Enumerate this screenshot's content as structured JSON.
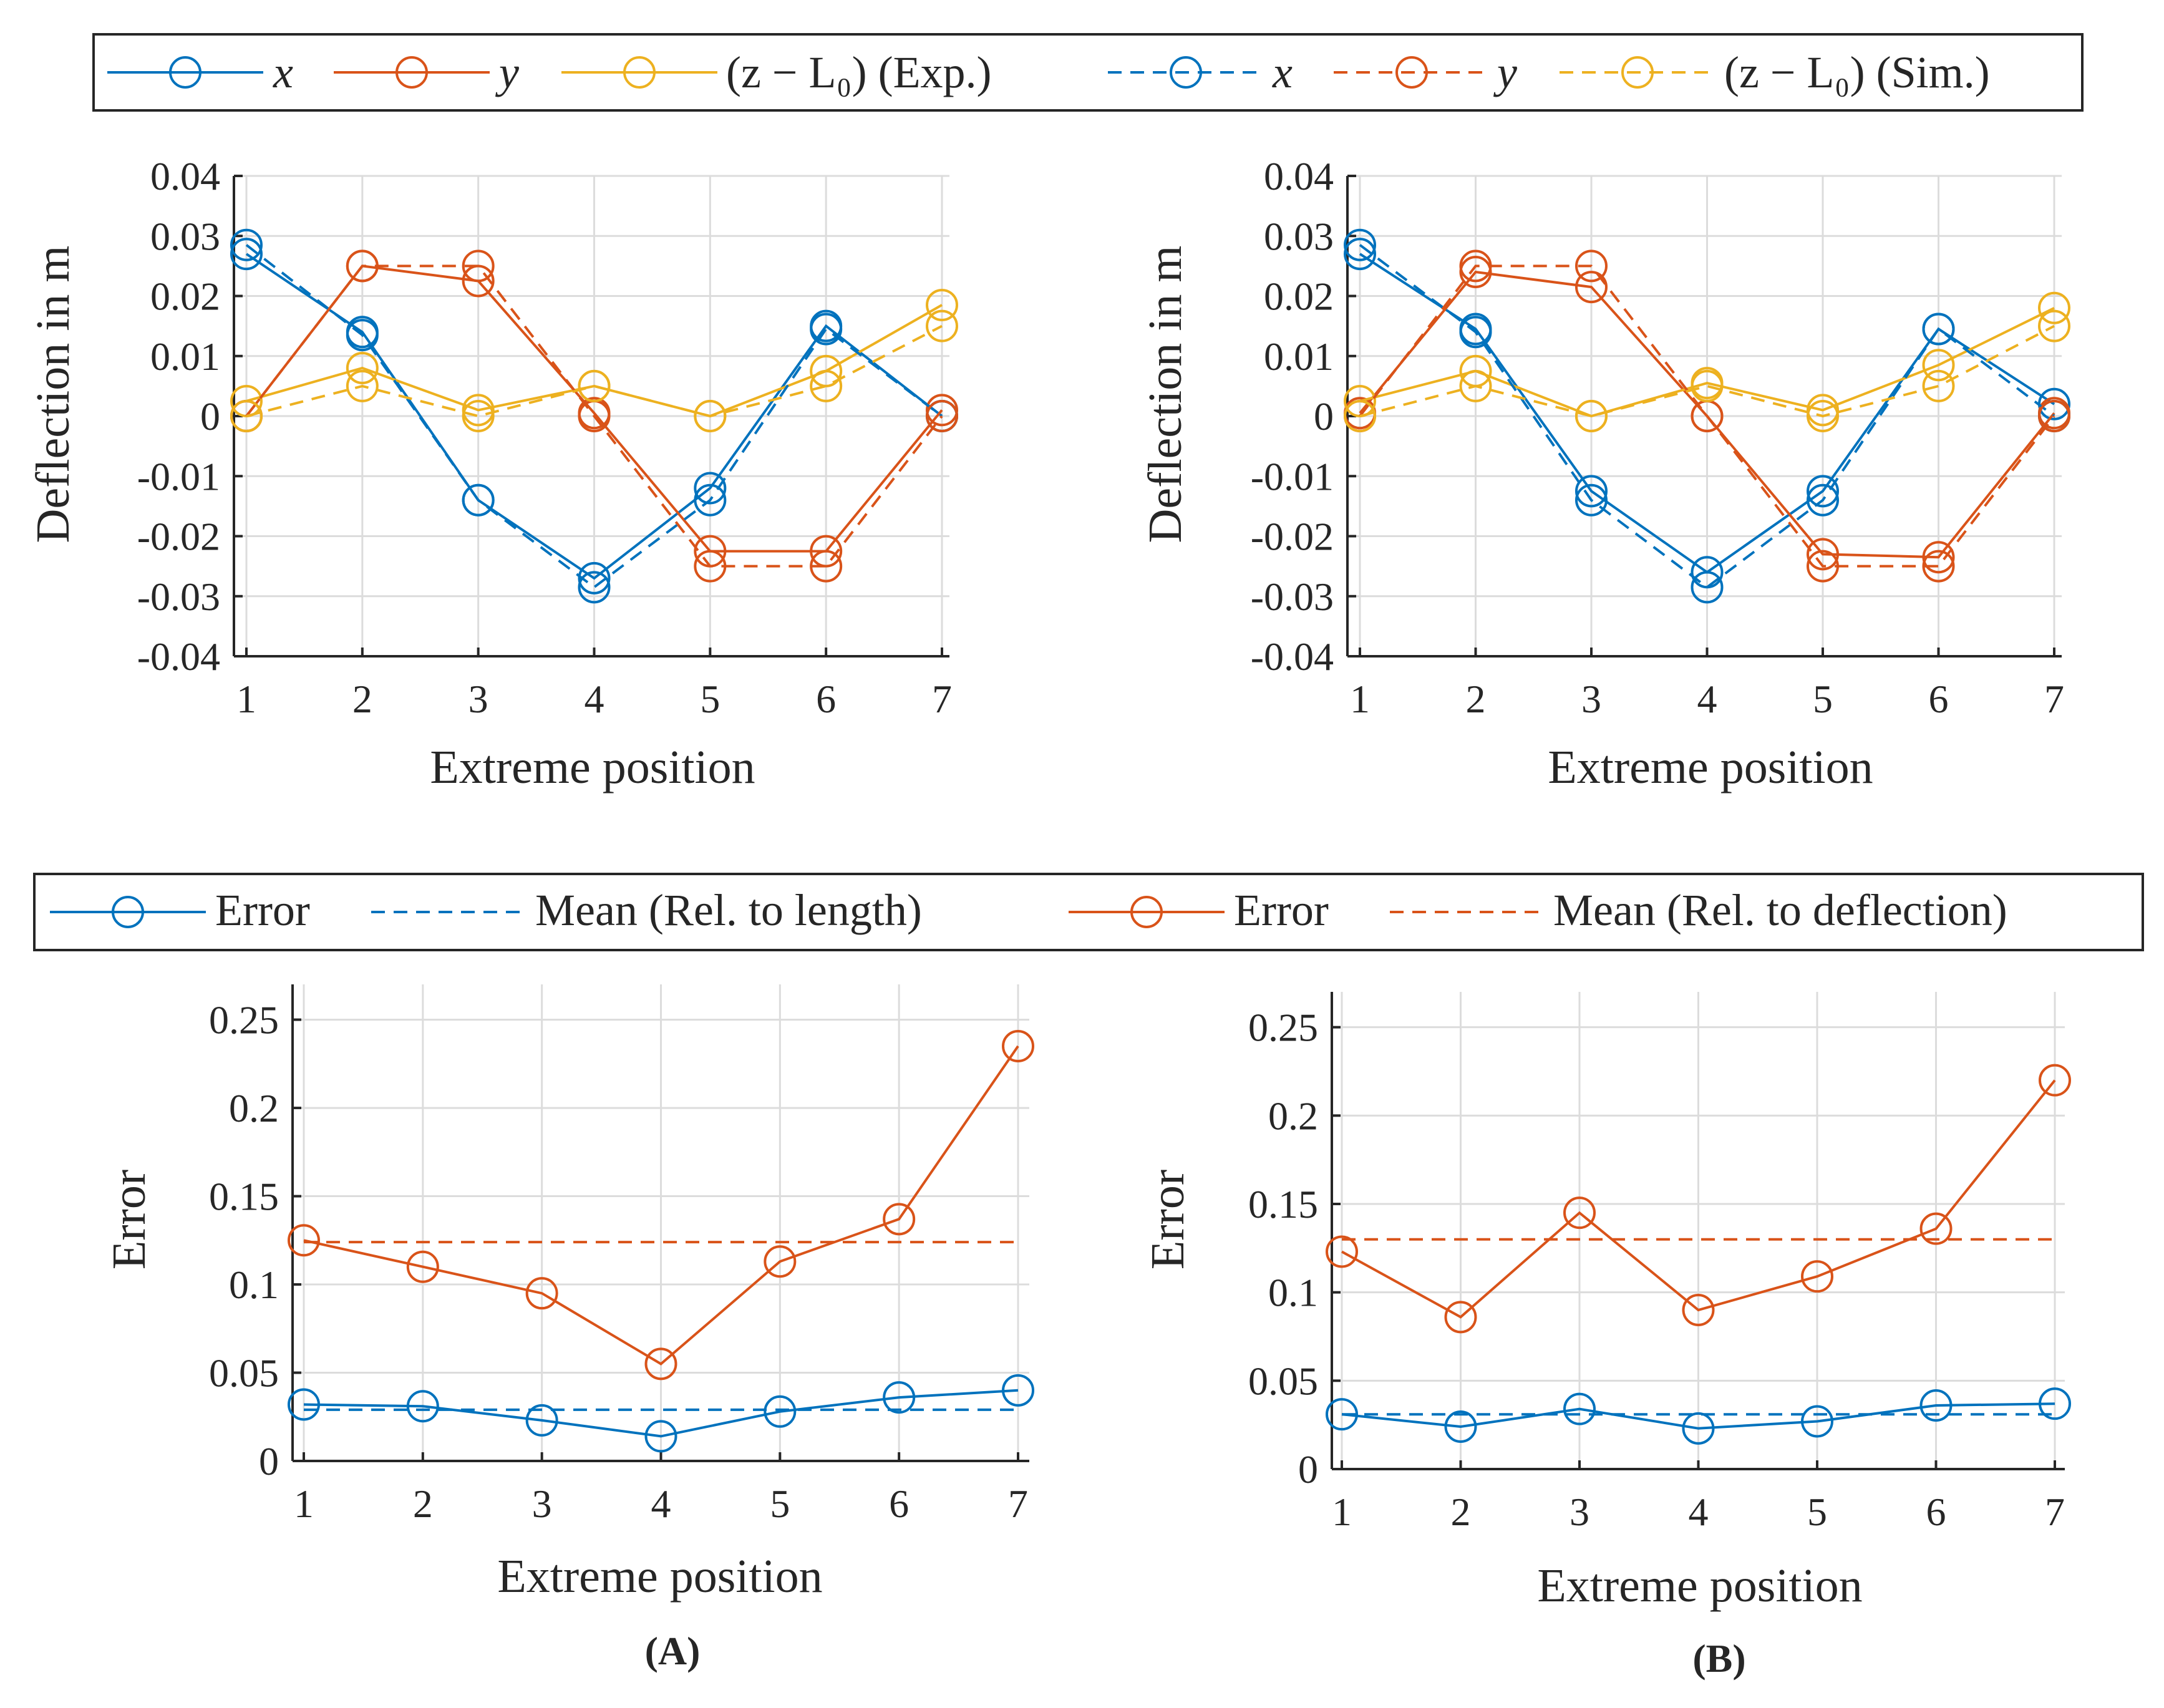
{
  "colors": {
    "blue": "#0072BD",
    "red": "#D95319",
    "yellow": "#EDB120",
    "grid": "#DCDCDC",
    "axis": "#262626"
  },
  "legend_top": {
    "entries": [
      {
        "label": "x",
        "series": "x_exp"
      },
      {
        "label": "y",
        "series": "y_exp"
      },
      {
        "label": "(z − L₀) (Exp.)",
        "series": "z_exp"
      },
      {
        "label": "x",
        "series": "x_sim"
      },
      {
        "label": "y",
        "series": "y_sim"
      },
      {
        "label": "(z − L₀) (Sim.)",
        "series": "z_sim"
      }
    ]
  },
  "legend_bottom": {
    "entries": [
      {
        "label": "Error",
        "series": "err_len"
      },
      {
        "label": "Mean (Rel. to length)",
        "series": "mean_len"
      },
      {
        "label": "Error",
        "series": "err_def"
      },
      {
        "label": "Mean (Rel. to deflection)",
        "series": "mean_def"
      }
    ]
  },
  "panel_labels": [
    "(A)",
    "(B)"
  ],
  "chart_data": [
    {
      "id": "defl_A",
      "type": "line",
      "xlabel": "Extreme position",
      "ylabel": "Deflection in m",
      "x": [
        1,
        2,
        3,
        4,
        5,
        6,
        7
      ],
      "xlim": [
        1,
        7
      ],
      "ylim": [
        -0.04,
        0.04
      ],
      "yticks": [
        -0.04,
        -0.03,
        -0.02,
        -0.01,
        0,
        0.01,
        0.02,
        0.03,
        0.04
      ],
      "ytick_labels": [
        "-0.04",
        "-0.03",
        "-0.02",
        "-0.01",
        "0",
        "0.01",
        "0.02",
        "0.03",
        "0.04"
      ],
      "xtick_labels": [
        "1",
        "2",
        "3",
        "4",
        "5",
        "6",
        "7"
      ],
      "series": [
        {
          "name": "x (Exp.)",
          "color": "blue",
          "style": "solid",
          "values": [
            0.027,
            0.014,
            -0.014,
            -0.027,
            -0.012,
            0.015,
            0.0
          ]
        },
        {
          "name": "y (Exp.)",
          "color": "red",
          "style": "solid",
          "values": [
            0.0,
            0.025,
            0.0225,
            0.0005,
            -0.0225,
            -0.0225,
            0.001
          ]
        },
        {
          "name": "(z - L0) (Exp.)",
          "color": "yellow",
          "style": "solid",
          "values": [
            0.0025,
            0.008,
            0.001,
            0.005,
            0.0,
            0.0075,
            0.0185
          ]
        },
        {
          "name": "x (Sim.)",
          "color": "blue",
          "style": "dashed",
          "values": [
            0.0285,
            0.0135,
            -0.014,
            -0.0285,
            -0.014,
            0.0145,
            0.0
          ]
        },
        {
          "name": "y (Sim.)",
          "color": "red",
          "style": "dashed",
          "values": [
            0.0,
            0.025,
            0.025,
            0.0,
            -0.025,
            -0.025,
            0.0
          ]
        },
        {
          "name": "(z - L0) (Sim.)",
          "color": "yellow",
          "style": "dashed",
          "values": [
            0.0,
            0.005,
            0.0,
            0.005,
            0.0,
            0.005,
            0.015
          ]
        }
      ]
    },
    {
      "id": "defl_B",
      "type": "line",
      "xlabel": "Extreme position",
      "ylabel": "Deflection in m",
      "x": [
        1,
        2,
        3,
        4,
        5,
        6,
        7
      ],
      "xlim": [
        1,
        7
      ],
      "ylim": [
        -0.04,
        0.04
      ],
      "yticks": [
        -0.04,
        -0.03,
        -0.02,
        -0.01,
        0,
        0.01,
        0.02,
        0.03,
        0.04
      ],
      "ytick_labels": [
        "-0.04",
        "-0.03",
        "-0.02",
        "-0.01",
        "0",
        "0.01",
        "0.02",
        "0.03",
        "0.04"
      ],
      "xtick_labels": [
        "1",
        "2",
        "3",
        "4",
        "5",
        "6",
        "7"
      ],
      "series": [
        {
          "name": "x (Exp.)",
          "color": "blue",
          "style": "solid",
          "values": [
            0.027,
            0.0145,
            -0.0125,
            -0.026,
            -0.0125,
            0.0145,
            0.002
          ]
        },
        {
          "name": "y (Exp.)",
          "color": "red",
          "style": "solid",
          "values": [
            0.0005,
            0.024,
            0.0215,
            0.0,
            -0.023,
            -0.0235,
            0.0005
          ]
        },
        {
          "name": "(z - L0) (Exp.)",
          "color": "yellow",
          "style": "solid",
          "values": [
            0.0025,
            0.0075,
            0.0,
            0.0055,
            0.001,
            0.0085,
            0.018
          ]
        },
        {
          "name": "x (Sim.)",
          "color": "blue",
          "style": "dashed",
          "values": [
            0.0285,
            0.014,
            -0.014,
            -0.0285,
            -0.014,
            0.0145,
            0.0
          ]
        },
        {
          "name": "y (Sim.)",
          "color": "red",
          "style": "dashed",
          "values": [
            0.0,
            0.025,
            0.025,
            0.0,
            -0.025,
            -0.025,
            0.0
          ]
        },
        {
          "name": "(z - L0) (Sim.)",
          "color": "yellow",
          "style": "dashed",
          "values": [
            0.0,
            0.005,
            0.0,
            0.005,
            0.0,
            0.005,
            0.015
          ]
        }
      ]
    },
    {
      "id": "err_A",
      "type": "line",
      "xlabel": "Extreme position",
      "ylabel": "Error",
      "x": [
        1,
        2,
        3,
        4,
        5,
        6,
        7
      ],
      "xlim": [
        1,
        7
      ],
      "ylim": [
        0,
        0.27
      ],
      "yticks": [
        0,
        0.05,
        0.1,
        0.15,
        0.2,
        0.25
      ],
      "ytick_labels": [
        "0",
        "0.05",
        "0.1",
        "0.15",
        "0.2",
        "0.25"
      ],
      "xtick_labels": [
        "1",
        "2",
        "3",
        "4",
        "5",
        "6",
        "7"
      ],
      "series": [
        {
          "name": "Error (Rel. to length)",
          "color": "blue",
          "style": "solid",
          "values": [
            0.032,
            0.031,
            0.023,
            0.014,
            0.028,
            0.036,
            0.04
          ]
        },
        {
          "name": "Mean (Rel. to length)",
          "color": "blue",
          "style": "dashed",
          "marker": false,
          "values": [
            0.029,
            0.029,
            0.029,
            0.029,
            0.029,
            0.029,
            0.029
          ]
        },
        {
          "name": "Error (Rel. to deflection)",
          "color": "red",
          "style": "solid",
          "values": [
            0.125,
            0.11,
            0.095,
            0.055,
            0.113,
            0.137,
            0.235
          ]
        },
        {
          "name": "Mean (Rel. to deflection)",
          "color": "red",
          "style": "dashed",
          "marker": false,
          "values": [
            0.124,
            0.124,
            0.124,
            0.124,
            0.124,
            0.124,
            0.124
          ]
        }
      ]
    },
    {
      "id": "err_B",
      "type": "line",
      "xlabel": "Extreme position",
      "ylabel": "Error",
      "x": [
        1,
        2,
        3,
        4,
        5,
        6,
        7
      ],
      "xlim": [
        1,
        7
      ],
      "ylim": [
        0,
        0.27
      ],
      "yticks": [
        0,
        0.05,
        0.1,
        0.15,
        0.2,
        0.25
      ],
      "ytick_labels": [
        "0",
        "0.05",
        "0.1",
        "0.15",
        "0.2",
        "0.25"
      ],
      "xtick_labels": [
        "1",
        "2",
        "3",
        "4",
        "5",
        "6",
        "7"
      ],
      "series": [
        {
          "name": "Error (Rel. to length)",
          "color": "blue",
          "style": "solid",
          "values": [
            0.031,
            0.024,
            0.034,
            0.023,
            0.027,
            0.036,
            0.037
          ]
        },
        {
          "name": "Mean (Rel. to length)",
          "color": "blue",
          "style": "dashed",
          "marker": false,
          "values": [
            0.031,
            0.031,
            0.031,
            0.031,
            0.031,
            0.031,
            0.031
          ]
        },
        {
          "name": "Error (Rel. to deflection)",
          "color": "red",
          "style": "solid",
          "values": [
            0.123,
            0.086,
            0.145,
            0.09,
            0.109,
            0.136,
            0.22
          ]
        },
        {
          "name": "Mean (Rel. to deflection)",
          "color": "red",
          "style": "dashed",
          "marker": false,
          "values": [
            0.13,
            0.13,
            0.13,
            0.13,
            0.13,
            0.13,
            0.13
          ]
        }
      ]
    }
  ]
}
